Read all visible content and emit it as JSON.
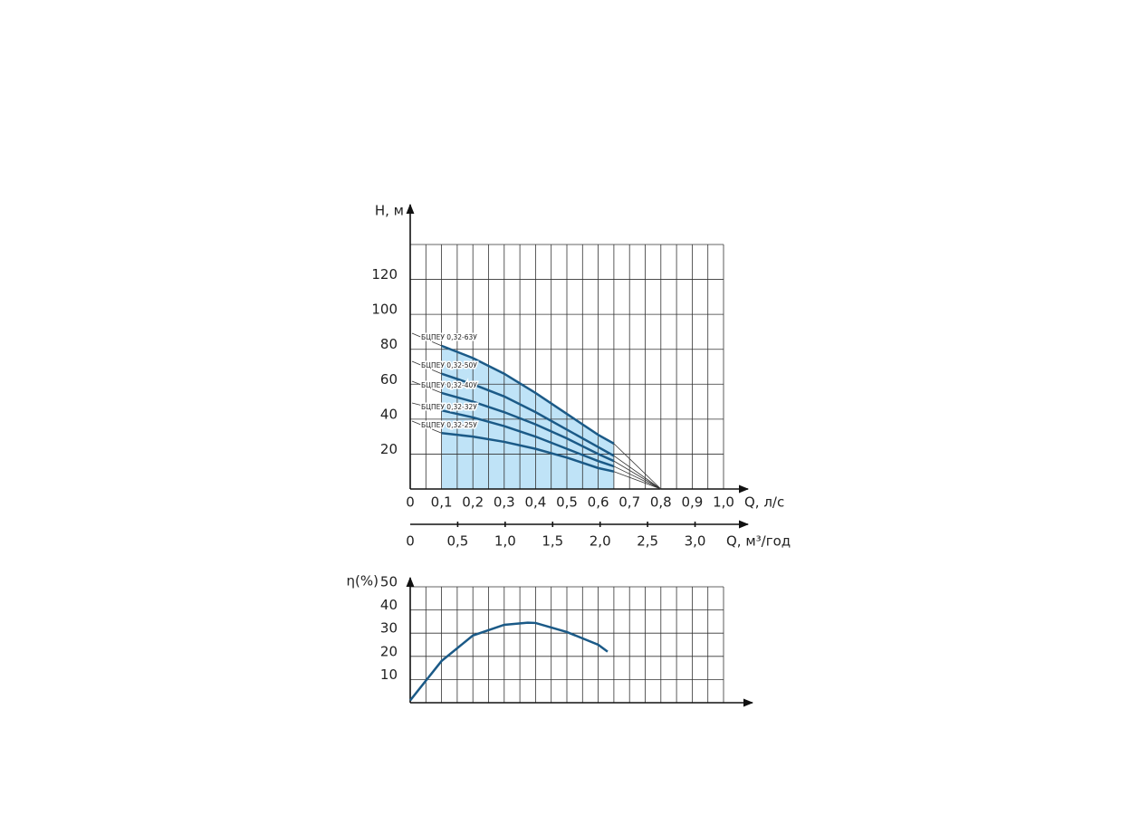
{
  "chart_data": [
    {
      "type": "line",
      "y_label": "H, м",
      "x_label": "Q, л/с",
      "x2_label": "Q, м³/год",
      "xlim": [
        0,
        1.0
      ],
      "ylim": [
        0,
        140
      ],
      "x2lim": [
        0,
        3.3
      ],
      "xticks": [
        0,
        {
          "value": 0.1,
          "label": "0,1"
        },
        {
          "value": 0.2,
          "label": "0,2"
        },
        {
          "value": 0.3,
          "label": "0,3"
        },
        {
          "value": 0.4,
          "label": "0,4"
        },
        {
          "value": 0.5,
          "label": "0,5"
        },
        {
          "value": 0.6,
          "label": "0,6"
        },
        {
          "value": 0.7,
          "label": "0,7"
        },
        {
          "value": 0.8,
          "label": "0,8"
        },
        {
          "value": 0.9,
          "label": "0,9"
        },
        {
          "value": 1.0,
          "label": "1,0"
        }
      ],
      "x2ticks": [
        0,
        {
          "value": 0.5,
          "label": "0,5"
        },
        {
          "value": 1.0,
          "label": "1,0"
        },
        {
          "value": 1.5,
          "label": "1,5"
        },
        {
          "value": 2.0,
          "label": "2,0"
        },
        {
          "value": 2.5,
          "label": "2,5"
        },
        {
          "value": 3.0,
          "label": "3,0"
        }
      ],
      "yticks": [
        20,
        40,
        60,
        80,
        100,
        120
      ],
      "xgrid": [
        0,
        0.05,
        0.1,
        0.15,
        0.2,
        0.25,
        0.3,
        0.35,
        0.4,
        0.45,
        0.5,
        0.55,
        0.6,
        0.65,
        0.7,
        0.75,
        0.8,
        0.85,
        0.9,
        0.95,
        1.0
      ],
      "ygrid": [
        20,
        40,
        60,
        80,
        100,
        120,
        140
      ],
      "grid": true,
      "shade_color": "#bfe3f7",
      "converge_point": [
        0.8,
        0
      ],
      "x": [
        0.1,
        0.2,
        0.3,
        0.4,
        0.5,
        0.6,
        0.65
      ],
      "series": [
        {
          "name": "БЦПЕУ 0,32-63У",
          "color": "#1b5a87",
          "values": [
            82,
            75,
            66,
            55,
            43,
            31,
            26
          ]
        },
        {
          "name": "БЦПЕУ 0,32-50У",
          "color": "#1b5a87",
          "values": [
            66,
            60,
            53,
            44,
            34,
            24,
            19
          ]
        },
        {
          "name": "БЦПЕУ 0,32-40У",
          "color": "#1b5a87",
          "values": [
            55,
            50,
            44,
            37,
            29,
            20,
            16
          ]
        },
        {
          "name": "БЦПЕУ 0,32-32У",
          "color": "#1b5a87",
          "values": [
            45,
            41,
            36,
            30,
            23,
            16,
            13
          ]
        },
        {
          "name": "БЦПЕУ 0,32-25У",
          "color": "#1b5a87",
          "values": [
            32,
            30,
            27,
            23,
            18,
            12,
            10
          ]
        }
      ]
    },
    {
      "type": "line",
      "y_label": "η(%)",
      "xlim": [
        0,
        1.0
      ],
      "ylim": [
        0,
        50
      ],
      "yticks": [
        10,
        20,
        30,
        40,
        50
      ],
      "xgrid": [
        0,
        0.05,
        0.1,
        0.15,
        0.2,
        0.25,
        0.3,
        0.35,
        0.4,
        0.45,
        0.5,
        0.55,
        0.6,
        0.65,
        0.7,
        0.75,
        0.8,
        0.85,
        0.9,
        0.95,
        1.0
      ],
      "grid": true,
      "x": [
        0,
        0.1,
        0.2,
        0.3,
        0.375,
        0.4,
        0.5,
        0.6,
        0.63
      ],
      "series": [
        {
          "color": "#1b5a87",
          "values": [
            1,
            18,
            29,
            33.6,
            34.5,
            34.4,
            30.5,
            25,
            22
          ]
        }
      ]
    }
  ]
}
